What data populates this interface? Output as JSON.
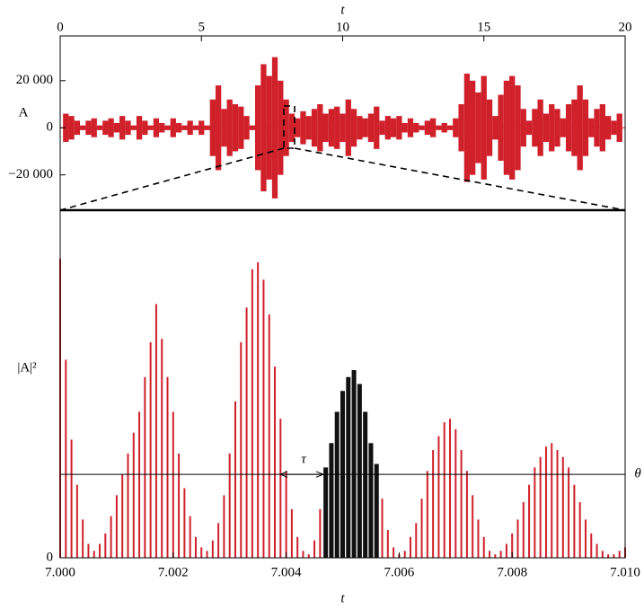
{
  "chart_data": [
    {
      "type": "envelope",
      "x_label": "t",
      "y_label": "A",
      "color": "#d0202a",
      "xlim": [
        0,
        20
      ],
      "xticks": [
        0,
        5,
        10,
        15,
        20
      ],
      "ylim": [
        -35000,
        39000
      ],
      "yticks": [
        {
          "value": 20000,
          "label": "20 000"
        },
        0,
        {
          "value": -20000,
          "label": "−20 000"
        }
      ],
      "x": [
        0,
        0.2,
        0.4,
        0.6,
        0.8,
        1,
        1.2,
        1.4,
        1.6,
        1.8,
        2,
        2.2,
        2.4,
        2.6,
        2.8,
        3,
        3.2,
        3.4,
        3.6,
        3.8,
        4,
        4.2,
        4.4,
        4.6,
        4.8,
        5,
        5.2,
        5.4,
        5.6,
        5.8,
        6,
        6.2,
        6.4,
        6.6,
        6.8,
        7,
        7.2,
        7.4,
        7.6,
        7.8,
        8,
        8.2,
        8.4,
        8.6,
        8.8,
        9,
        9.2,
        9.4,
        9.6,
        9.8,
        10,
        10.2,
        10.4,
        10.6,
        10.8,
        11,
        11.2,
        11.4,
        11.6,
        11.8,
        12,
        12.2,
        12.4,
        12.6,
        12.8,
        13,
        13.2,
        13.4,
        13.6,
        13.8,
        14,
        14.2,
        14.4,
        14.6,
        14.8,
        15,
        15.2,
        15.4,
        15.6,
        15.8,
        16,
        16.2,
        16.4,
        16.6,
        16.8,
        17,
        17.2,
        17.4,
        17.6,
        17.8,
        18,
        18.2,
        18.4,
        18.6,
        18.8,
        19,
        19.2,
        19.4,
        19.6,
        19.8,
        20
      ],
      "values": [
        0,
        6000,
        5000,
        3000,
        1000,
        3000,
        4000,
        1000,
        3000,
        4000,
        2000,
        5000,
        3000,
        1000,
        5000,
        3000,
        1000,
        4000,
        2000,
        1000,
        4000,
        2000,
        1000,
        3000,
        1000,
        3000,
        1000,
        12000,
        18000,
        8000,
        12000,
        10000,
        9000,
        5000,
        1000,
        18000,
        27000,
        22000,
        30000,
        20000,
        12000,
        6000,
        4000,
        7000,
        5000,
        8000,
        10000,
        6000,
        8000,
        9000,
        6000,
        12000,
        8000,
        5000,
        4000,
        6000,
        9000,
        3000,
        5000,
        4000,
        5000,
        2000,
        4000,
        2000,
        1000,
        3000,
        4000,
        1000,
        2000,
        1000,
        4000,
        10000,
        23000,
        20000,
        15000,
        22000,
        12000,
        5000,
        14000,
        20000,
        22000,
        18000,
        8000,
        3000,
        8000,
        12000,
        6000,
        10000,
        8000,
        4000,
        10000,
        12000,
        18000,
        12000,
        4000,
        8000,
        10000,
        5000,
        3000,
        6000,
        0
      ]
    },
    {
      "type": "bar",
      "x_label": "t",
      "y_label": "|A|²",
      "threshold": 0.24,
      "threshold_label": "θ",
      "interval_label": "τ",
      "xlim": [
        7.0,
        7.01
      ],
      "xticks": [
        {
          "value": 7.0,
          "label": "7.000"
        },
        {
          "value": 7.002,
          "label": "7.002"
        },
        {
          "value": 7.004,
          "label": "7.004"
        },
        {
          "value": 7.006,
          "label": "7.006"
        },
        {
          "value": 7.008,
          "label": "7.008"
        },
        {
          "value": 7.01,
          "label": "7.010"
        }
      ],
      "ylim": [
        0,
        1
      ],
      "yticks": [
        0
      ],
      "x": [
        7.0,
        7.0001,
        7.0002,
        7.0003,
        7.0004,
        7.0005,
        7.0006,
        7.0007,
        7.0008,
        7.0009,
        7.001,
        7.0011,
        7.0012,
        7.0013,
        7.0014,
        7.0015,
        7.0016,
        7.0017,
        7.0018,
        7.0019,
        7.002,
        7.0021,
        7.0022,
        7.0023,
        7.0024,
        7.0025,
        7.0026,
        7.0027,
        7.0028,
        7.0029,
        7.003,
        7.0031,
        7.0032,
        7.0033,
        7.0034,
        7.0035,
        7.0036,
        7.0037,
        7.0038,
        7.0039,
        7.004,
        7.0041,
        7.0042,
        7.0043,
        7.0044,
        7.0045,
        7.0046,
        7.0047,
        7.0048,
        7.0049,
        7.005,
        7.0051,
        7.0052,
        7.0053,
        7.0054,
        7.0055,
        7.0056,
        7.0057,
        7.0058,
        7.0059,
        7.006,
        7.0061,
        7.0062,
        7.0063,
        7.0064,
        7.0065,
        7.0066,
        7.0067,
        7.0068,
        7.0069,
        7.007,
        7.0071,
        7.0072,
        7.0073,
        7.0074,
        7.0075,
        7.0076,
        7.0077,
        7.0078,
        7.0079,
        7.008,
        7.0081,
        7.0082,
        7.0083,
        7.0084,
        7.0085,
        7.0086,
        7.0087,
        7.0088,
        7.0089,
        7.009,
        7.0091,
        7.0092,
        7.0093,
        7.0094,
        7.0095,
        7.0096,
        7.0097,
        7.0098,
        7.0099,
        7.01
      ],
      "series": [
        {
          "color": "#d0202a",
          "values": [
            0.86,
            0.57,
            0.34,
            0.21,
            0.11,
            0.04,
            0.02,
            0.04,
            0.07,
            0.12,
            0.18,
            0.24,
            0.3,
            0.36,
            0.42,
            0.52,
            0.62,
            0.73,
            0.63,
            0.52,
            0.42,
            0.3,
            0.2,
            0.12,
            0.06,
            0.03,
            0.02,
            0.05,
            0.1,
            0.18,
            0.3,
            0.45,
            0.62,
            0.72,
            0.83,
            0.85,
            0.8,
            0.7,
            0.55,
            0.4,
            0.25,
            0.14,
            0.06,
            0.02,
            0.01,
            0.05,
            0.14,
            null,
            null,
            null,
            null,
            null,
            null,
            null,
            null,
            null,
            null,
            0.17,
            0.08,
            0.03,
            0.01,
            0.02,
            0.06,
            0.1,
            0.17,
            0.25,
            0.31,
            0.35,
            0.39,
            0.4,
            0.37,
            0.31,
            0.25,
            0.18,
            0.11,
            0.06,
            0.02,
            0.01,
            0.02,
            0.04,
            0.07,
            0.11,
            0.16,
            0.21,
            0.26,
            0.29,
            0.32,
            0.33,
            0.31,
            0.29,
            0.26,
            0.21,
            0.16,
            0.11,
            0.07,
            0.04,
            0.02,
            0.01,
            0.01,
            0.02,
            0.03
          ]
        },
        {
          "color": "#111111",
          "values": [
            null,
            null,
            null,
            null,
            null,
            null,
            null,
            null,
            null,
            null,
            null,
            null,
            null,
            null,
            null,
            null,
            null,
            null,
            null,
            null,
            null,
            null,
            null,
            null,
            null,
            null,
            null,
            null,
            null,
            null,
            null,
            null,
            null,
            null,
            null,
            null,
            null,
            null,
            null,
            null,
            null,
            null,
            null,
            null,
            null,
            null,
            null,
            0.26,
            0.33,
            0.42,
            0.48,
            0.52,
            0.54,
            0.5,
            0.42,
            0.33,
            0.27,
            null,
            null,
            null,
            null,
            null,
            null,
            null,
            null,
            null,
            null,
            null,
            null,
            null,
            null,
            null,
            null,
            null,
            null,
            null,
            null,
            null,
            null,
            null,
            null,
            null,
            null,
            null,
            null,
            null,
            null,
            null,
            null,
            null,
            null,
            null,
            null,
            null,
            null,
            null,
            null,
            null,
            null,
            null,
            null
          ]
        }
      ]
    }
  ]
}
